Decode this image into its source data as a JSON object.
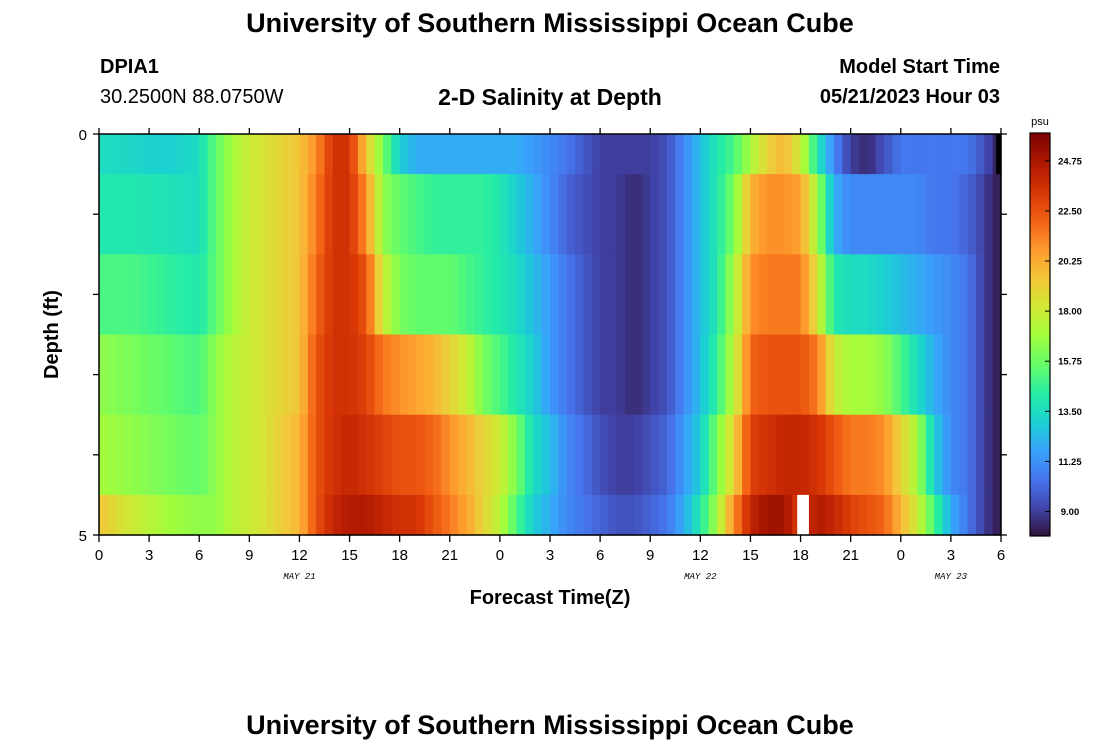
{
  "page": {
    "title": "University of Southern Mississippi Ocean Cube",
    "station_id": "DPIA1",
    "coords": "30.2500N  88.0750W",
    "plot_title": "2-D Salinity at Depth",
    "model_start_label": "Model Start Time",
    "model_start_value": "05/21/2023 Hour 03",
    "footer_title": "University of Southern Mississippi Ocean Cube"
  },
  "chart_data": {
    "type": "heatmap",
    "title": "2-D Salinity at Depth",
    "xlabel": "Forecast Time(Z)",
    "ylabel": "Depth (ft)",
    "colorbar_unit": "psu",
    "colorbar_ticks": [
      "24.75",
      "22.50",
      "20.25",
      "18.00",
      "15.75",
      "13.50",
      "11.25",
      "9.00"
    ],
    "colorbar_values": [
      24.75,
      22.5,
      20.25,
      18.0,
      15.75,
      13.5,
      11.25,
      9.0
    ],
    "vmin": 7.9,
    "vmax": 26.0,
    "x_tick_labels": [
      "0",
      "3",
      "6",
      "9",
      "12",
      "15",
      "18",
      "21",
      "0",
      "3",
      "6",
      "9",
      "12",
      "15",
      "18",
      "21",
      "0",
      "3",
      "6"
    ],
    "x_hours": [
      0,
      3,
      6,
      9,
      12,
      15,
      18,
      21,
      24,
      27,
      30,
      33,
      36,
      39,
      42,
      45,
      48,
      51,
      54
    ],
    "xlim": [
      0,
      54
    ],
    "day_labels": [
      {
        "text": "MAY 21",
        "hour": 12
      },
      {
        "text": "MAY 22",
        "hour": 36
      },
      {
        "text": "MAY 23",
        "hour": 51
      }
    ],
    "y_tick_labels": [
      "0",
      "5"
    ],
    "ylim": [
      0,
      5
    ],
    "depth_bands": [
      0,
      0.5,
      1.5,
      2.5,
      3.5,
      4.5
    ],
    "key_hours": [
      0,
      2,
      4,
      6,
      7,
      8,
      9,
      10,
      12,
      13,
      14,
      15,
      16,
      17,
      18,
      19,
      20,
      21,
      22,
      23,
      24,
      25,
      26,
      27,
      28,
      30,
      31,
      32,
      33,
      34,
      35,
      36,
      37,
      38,
      39,
      40,
      41,
      42,
      43,
      44,
      45,
      46,
      47,
      48,
      49,
      50,
      51,
      52,
      53,
      54
    ],
    "band_values": [
      [
        13.5,
        13.3,
        13.0,
        13.5,
        15.5,
        17.0,
        18.0,
        18.5,
        19.5,
        21.0,
        23.5,
        23.5,
        19.5,
        16.0,
        13.0,
        12.0,
        12.0,
        12.0,
        12.0,
        12.0,
        12.0,
        12.0,
        11.5,
        11.0,
        10.5,
        9.0,
        9.0,
        9.0,
        9.0,
        9.5,
        11.0,
        12.5,
        14.0,
        15.0,
        17.0,
        19.0,
        20.0,
        18.0,
        14.0,
        11.0,
        9.0,
        8.5,
        9.5,
        10.5,
        10.5,
        10.5,
        10.5,
        10.5,
        9.5,
        8.0
      ],
      [
        14.0,
        14.0,
        13.8,
        13.5,
        15.5,
        17.0,
        18.0,
        18.5,
        19.5,
        21.5,
        23.5,
        23.5,
        21.0,
        16.5,
        15.5,
        15.0,
        14.5,
        14.5,
        14.5,
        14.5,
        14.0,
        13.0,
        12.0,
        11.0,
        10.0,
        9.0,
        9.0,
        8.5,
        9.0,
        9.5,
        11.0,
        12.5,
        14.0,
        16.0,
        20.0,
        21.0,
        21.0,
        20.5,
        17.0,
        12.0,
        11.0,
        11.0,
        11.0,
        11.0,
        11.0,
        10.5,
        10.5,
        10.0,
        9.0,
        8.0
      ],
      [
        15.0,
        15.0,
        14.5,
        14.0,
        15.5,
        17.0,
        18.0,
        18.5,
        19.5,
        22.0,
        23.5,
        23.5,
        22.5,
        18.0,
        16.0,
        15.5,
        15.5,
        15.5,
        15.0,
        14.5,
        14.0,
        13.5,
        12.5,
        11.5,
        10.5,
        9.0,
        9.0,
        8.5,
        9.0,
        9.5,
        11.0,
        12.5,
        14.0,
        17.0,
        21.0,
        21.5,
        21.5,
        21.5,
        18.5,
        14.0,
        13.5,
        13.5,
        13.0,
        12.5,
        12.0,
        11.5,
        11.0,
        10.5,
        9.0,
        8.0
      ],
      [
        16.5,
        16.0,
        15.5,
        15.0,
        16.5,
        17.5,
        18.0,
        18.5,
        19.5,
        22.5,
        23.5,
        23.5,
        23.0,
        21.5,
        21.0,
        20.5,
        20.0,
        19.0,
        18.0,
        16.0,
        15.0,
        14.0,
        13.0,
        11.5,
        10.5,
        9.0,
        9.0,
        8.5,
        9.0,
        9.5,
        11.0,
        12.5,
        14.5,
        17.5,
        22.0,
        22.5,
        22.5,
        22.5,
        21.5,
        18.0,
        17.0,
        17.0,
        16.5,
        15.0,
        13.5,
        12.0,
        11.0,
        10.5,
        9.0,
        8.0
      ],
      [
        17.0,
        16.5,
        16.0,
        15.5,
        16.5,
        17.5,
        18.0,
        18.5,
        20.0,
        22.5,
        23.5,
        24.0,
        23.5,
        23.0,
        22.5,
        22.5,
        22.0,
        21.0,
        20.0,
        19.0,
        18.0,
        16.0,
        13.5,
        12.5,
        11.0,
        9.5,
        9.0,
        9.0,
        9.5,
        10.0,
        11.5,
        13.0,
        16.0,
        19.0,
        23.0,
        23.5,
        24.0,
        24.0,
        23.5,
        22.5,
        21.5,
        21.5,
        21.0,
        19.0,
        17.0,
        13.0,
        11.0,
        10.5,
        9.0,
        8.0
      ],
      [
        19.5,
        18.0,
        17.0,
        16.5,
        16.5,
        17.5,
        18.0,
        18.5,
        20.0,
        22.5,
        24.0,
        24.5,
        24.5,
        24.0,
        23.5,
        23.5,
        22.5,
        21.5,
        20.5,
        19.0,
        17.5,
        15.0,
        13.0,
        12.0,
        11.0,
        10.0,
        9.5,
        9.5,
        10.0,
        10.5,
        12.0,
        14.0,
        17.0,
        21.0,
        24.0,
        25.0,
        25.0,
        23.0,
        24.5,
        24.0,
        23.0,
        22.5,
        22.0,
        20.0,
        18.0,
        15.0,
        12.0,
        10.5,
        9.0,
        8.0
      ]
    ],
    "gaps": [
      {
        "hour_start": 41.8,
        "hour_end": 42.5,
        "band": 5
      }
    ]
  }
}
